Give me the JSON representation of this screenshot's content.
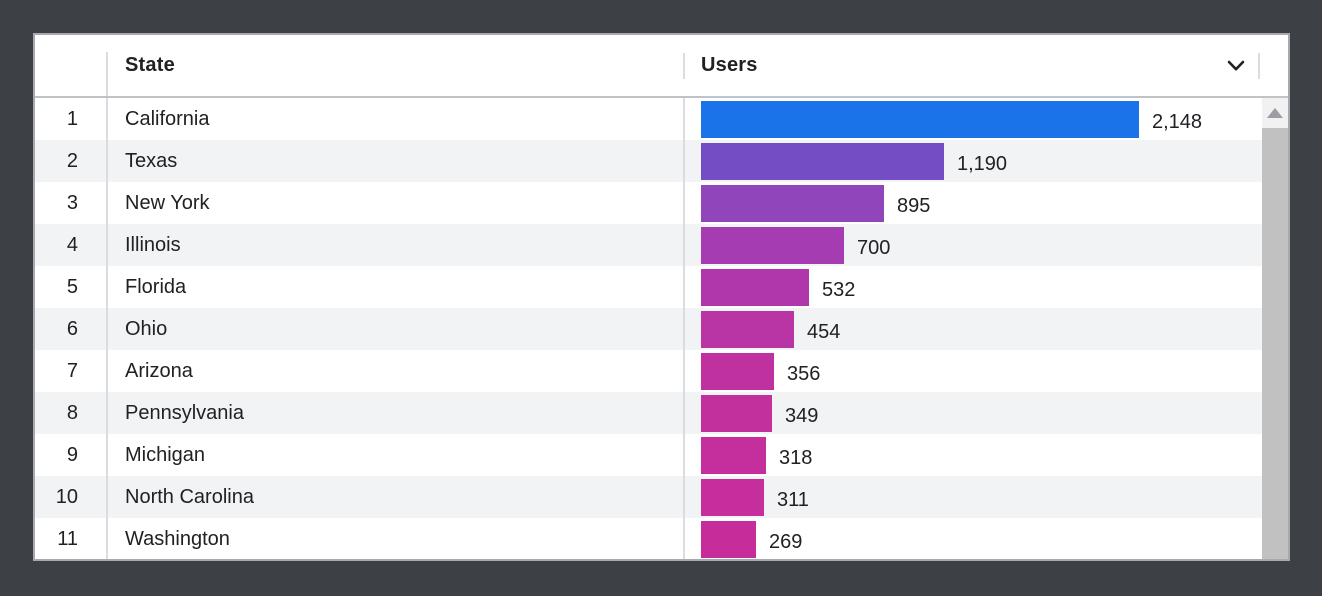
{
  "window": {
    "background_color": "#3d4145"
  },
  "card": {
    "background_color": "#ffffff",
    "border_color": "#a6a9ad",
    "zebra_row_color": "#f1f3f4",
    "divider_color": "#dadce0",
    "header_underline_color": "#c0c3c7"
  },
  "header": {
    "index_label": "",
    "state_label": "State",
    "users_label": "Users",
    "text_color": "#202124",
    "sort_icon": "chevron-down-icon"
  },
  "table": {
    "rows": [
      {
        "index": "1",
        "state": "California",
        "users_display": "2,148",
        "value": 2148,
        "bar_color": "#1a73e8"
      },
      {
        "index": "2",
        "state": "Texas",
        "users_display": "1,190",
        "value": 1190,
        "bar_color": "#744dc4"
      },
      {
        "index": "3",
        "state": "New York",
        "users_display": "895",
        "value": 895,
        "bar_color": "#9045bb"
      },
      {
        "index": "4",
        "state": "Illinois",
        "users_display": "700",
        "value": 700,
        "bar_color": "#a63cb2"
      },
      {
        "index": "5",
        "state": "Florida",
        "users_display": "532",
        "value": 532,
        "bar_color": "#af37ab"
      },
      {
        "index": "6",
        "state": "Ohio",
        "users_display": "454",
        "value": 454,
        "bar_color": "#b934a4"
      },
      {
        "index": "7",
        "state": "Arizona",
        "users_display": "356",
        "value": 356,
        "bar_color": "#c031a0"
      },
      {
        "index": "8",
        "state": "Pennsylvania",
        "users_display": "349",
        "value": 349,
        "bar_color": "#c2309e"
      },
      {
        "index": "9",
        "state": "Michigan",
        "users_display": "318",
        "value": 318,
        "bar_color": "#c42f9d"
      },
      {
        "index": "10",
        "state": "North Carolina",
        "users_display": "311",
        "value": 311,
        "bar_color": "#c52e9c"
      },
      {
        "index": "11",
        "state": "Washington",
        "users_display": "269",
        "value": 269,
        "bar_color": "#c62d9b"
      }
    ]
  },
  "scrollbar": {
    "track_color": "#f1f1f1",
    "thumb_color": "#c1c1c1",
    "arrow_color": "#9a9da1",
    "up_icon": "triangle-up-icon"
  },
  "chart_data": {
    "type": "bar",
    "orientation": "horizontal",
    "title": "",
    "xlabel": "Users",
    "ylabel": "State",
    "categories": [
      "California",
      "Texas",
      "New York",
      "Illinois",
      "Florida",
      "Ohio",
      "Arizona",
      "Pennsylvania",
      "Michigan",
      "North Carolina",
      "Washington"
    ],
    "values": [
      2148,
      1190,
      895,
      700,
      532,
      454,
      356,
      349,
      318,
      311,
      269
    ],
    "value_labels": [
      "2,148",
      "1,190",
      "895",
      "700",
      "532",
      "454",
      "356",
      "349",
      "318",
      "311",
      "269"
    ],
    "bar_colors": [
      "#1a73e8",
      "#744dc4",
      "#9045bb",
      "#a63cb2",
      "#af37ab",
      "#b934a4",
      "#c031a0",
      "#c2309e",
      "#c42f9d",
      "#c52e9c",
      "#c62d9b"
    ],
    "xlim": [
      0,
      2148
    ],
    "grid": false,
    "legend": false
  }
}
